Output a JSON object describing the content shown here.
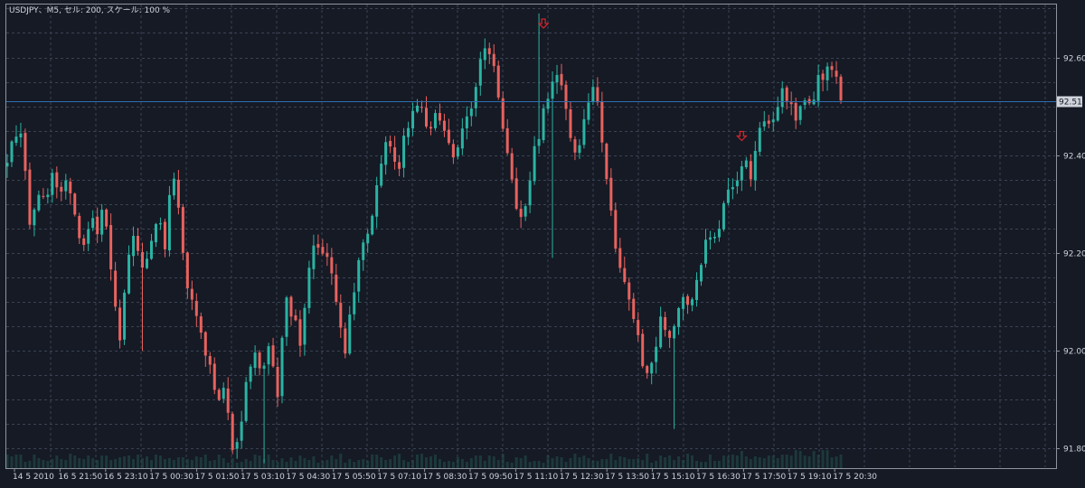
{
  "chart_title": "USDJPY、M5, セル: 200, スケール: 100 %",
  "current_price_label": "92.510",
  "colors": {
    "background": "#151a25",
    "frame": "#8f949c",
    "grid": "#3b4252",
    "bull": "#2bb3a3",
    "bear": "#e8625e",
    "bid_line": "#2f6fb0",
    "volume": "#24524e",
    "arrow": "#d7262a",
    "text": "#cfd3da"
  },
  "chart_data": {
    "type": "candlestick",
    "symbol": "USDJPY",
    "timeframe": "M5",
    "ylim": [
      91.76,
      92.71
    ],
    "y_ticks": [
      "92.600",
      "92.400",
      "92.200",
      "92.000",
      "91.800"
    ],
    "x_ticks": [
      "14 5 2010",
      "16 5 21:50",
      "16 5 23:10",
      "17 5 00:30",
      "17 5 01:50",
      "17 5 03:10",
      "17 5 04:30",
      "17 5 05:50",
      "17 5 07:10",
      "17 5 08:30",
      "17 5 09:50",
      "17 5 11:10",
      "17 5 12:30",
      "17 5 13:50",
      "17 5 15:10",
      "17 5 16:30",
      "17 5 17:50",
      "17 5 19:10",
      "17 5 20:30"
    ],
    "horizontal_line": {
      "label": "92.510",
      "value": 92.51
    },
    "sell_arrows": [
      {
        "index": 118,
        "price": 92.66
      },
      {
        "index": 162,
        "price": 92.43
      }
    ],
    "key_prices": [
      92.38,
      92.44,
      92.46,
      92.25,
      92.33,
      92.3,
      92.36,
      92.3,
      92.36,
      92.28,
      92.2,
      92.27,
      92.25,
      92.3,
      92.14,
      92.02,
      92.18,
      92.24,
      92.16,
      92.23,
      92.27,
      92.22,
      92.37,
      92.26,
      92.12,
      92.08,
      92.02,
      91.96,
      91.88,
      91.93,
      91.79,
      91.84,
      91.96,
      92.0,
      91.94,
      92.03,
      91.9,
      92.1,
      92.08,
      92.02,
      92.14,
      92.24,
      92.2,
      92.17,
      92.1,
      92.0,
      92.1,
      92.2,
      92.24,
      92.32,
      92.4,
      92.43,
      92.34,
      92.46,
      92.48,
      92.51,
      92.44,
      92.48,
      92.46,
      92.4,
      92.42,
      92.47,
      92.51,
      92.6,
      92.62,
      92.59,
      92.44,
      92.36,
      92.26,
      92.3,
      92.39,
      92.46,
      92.53,
      92.57,
      92.52,
      92.44,
      92.4,
      92.5,
      92.55,
      92.46,
      92.34,
      92.2,
      92.14,
      92.1,
      92.02,
      91.94,
      91.99,
      92.06,
      92.03,
      92.06,
      92.1,
      92.08,
      92.16,
      92.22,
      92.23,
      92.27,
      92.33,
      92.35,
      92.4,
      92.36,
      92.44,
      92.48,
      92.46,
      92.54,
      92.5,
      92.48,
      92.53,
      92.51,
      92.55,
      92.57,
      92.59,
      92.51
    ]
  }
}
